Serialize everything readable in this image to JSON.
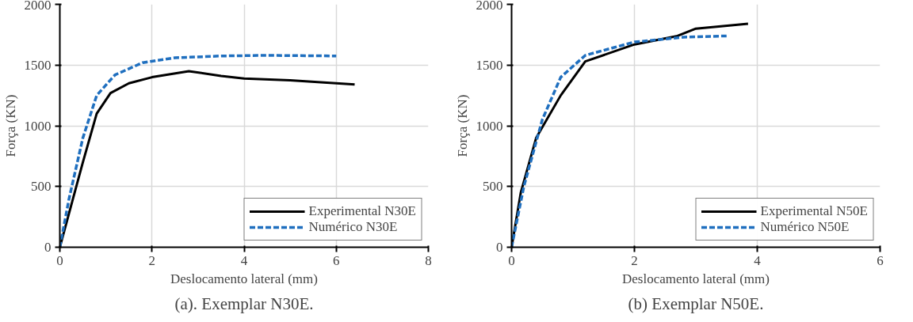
{
  "chart_data": [
    {
      "type": "line",
      "title": "(a). Exemplar N30E.",
      "xlabel": "Deslocamento lateral (mm)",
      "ylabel": "Força (KN)",
      "xlim": [
        0,
        8
      ],
      "ylim": [
        0,
        2000
      ],
      "xticks": [
        0,
        2,
        4,
        6,
        8
      ],
      "yticks": [
        0,
        500,
        1000,
        1500,
        2000
      ],
      "grid": true,
      "legend": "bottom right",
      "marker": "none",
      "series": [
        {
          "name": "Experimental N30E",
          "color": "#000000",
          "line_style": "solid",
          "x": [
            0,
            0.5,
            0.8,
            1.1,
            1.5,
            2,
            2.8,
            3.5,
            4,
            5,
            6.4
          ],
          "values": [
            0,
            700,
            1100,
            1270,
            1350,
            1400,
            1450,
            1410,
            1390,
            1375,
            1340
          ]
        },
        {
          "name": "Numérico N30E",
          "color": "#1f6fbf",
          "line_style": "dashed",
          "x": [
            0,
            0.2,
            0.5,
            0.8,
            1.2,
            1.8,
            2.5,
            3.5,
            4.5,
            6
          ],
          "values": [
            0,
            400,
            900,
            1250,
            1420,
            1520,
            1560,
            1575,
            1580,
            1575
          ]
        }
      ]
    },
    {
      "type": "line",
      "title": "(b) Exemplar N50E.",
      "xlabel": "Deslocamento lateral (mm)",
      "ylabel": "Força (KN)",
      "xlim": [
        0,
        6
      ],
      "ylim": [
        0,
        2000
      ],
      "xticks": [
        0,
        2,
        4,
        6
      ],
      "yticks": [
        0,
        500,
        1000,
        1500,
        2000
      ],
      "grid": true,
      "legend": "bottom right",
      "marker": "none",
      "series": [
        {
          "name": "Experimental N50E",
          "color": "#000000",
          "line_style": "solid",
          "x": [
            0,
            0.15,
            0.4,
            0.8,
            1.2,
            2,
            2.7,
            3,
            3.85
          ],
          "values": [
            0,
            450,
            900,
            1250,
            1530,
            1670,
            1740,
            1800,
            1840
          ]
        },
        {
          "name": "Numérico N50E",
          "color": "#1f6fbf",
          "line_style": "dashed",
          "x": [
            0,
            0.2,
            0.5,
            0.8,
            1.2,
            2,
            2.8,
            3.5
          ],
          "values": [
            0,
            500,
            1050,
            1400,
            1580,
            1690,
            1730,
            1740
          ]
        }
      ]
    }
  ]
}
